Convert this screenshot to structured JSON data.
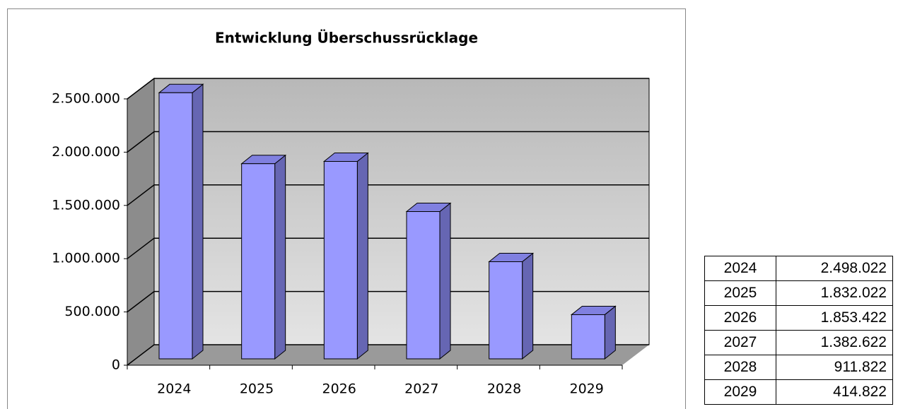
{
  "chart_data": {
    "type": "bar3d",
    "title": "Entwicklung Überschussrücklage",
    "categories": [
      "2024",
      "2025",
      "2026",
      "2027",
      "2028",
      "2029"
    ],
    "values": [
      2498022,
      1832022,
      1853422,
      1382622,
      911822,
      414822
    ],
    "color": "#9999ff",
    "ylim": [
      0,
      2500000
    ],
    "yticks": [
      0,
      {
        "value": 500000,
        "label": "500.000"
      },
      {
        "value": 1000000,
        "label": "1.000.000"
      },
      {
        "value": 1500000,
        "label": "1.500.000"
      },
      {
        "value": 2000000,
        "label": "2.000.000"
      },
      {
        "value": 2500000,
        "label": "2.500.000"
      }
    ],
    "grid": true
  },
  "table": {
    "rows": [
      [
        "2024",
        "2.498.022"
      ],
      [
        "2025",
        "1.832.022"
      ],
      [
        "2026",
        "1.853.422"
      ],
      [
        "2027",
        "1.382.622"
      ],
      [
        "2028",
        "911.822"
      ],
      [
        "2029",
        "414.822"
      ]
    ]
  }
}
